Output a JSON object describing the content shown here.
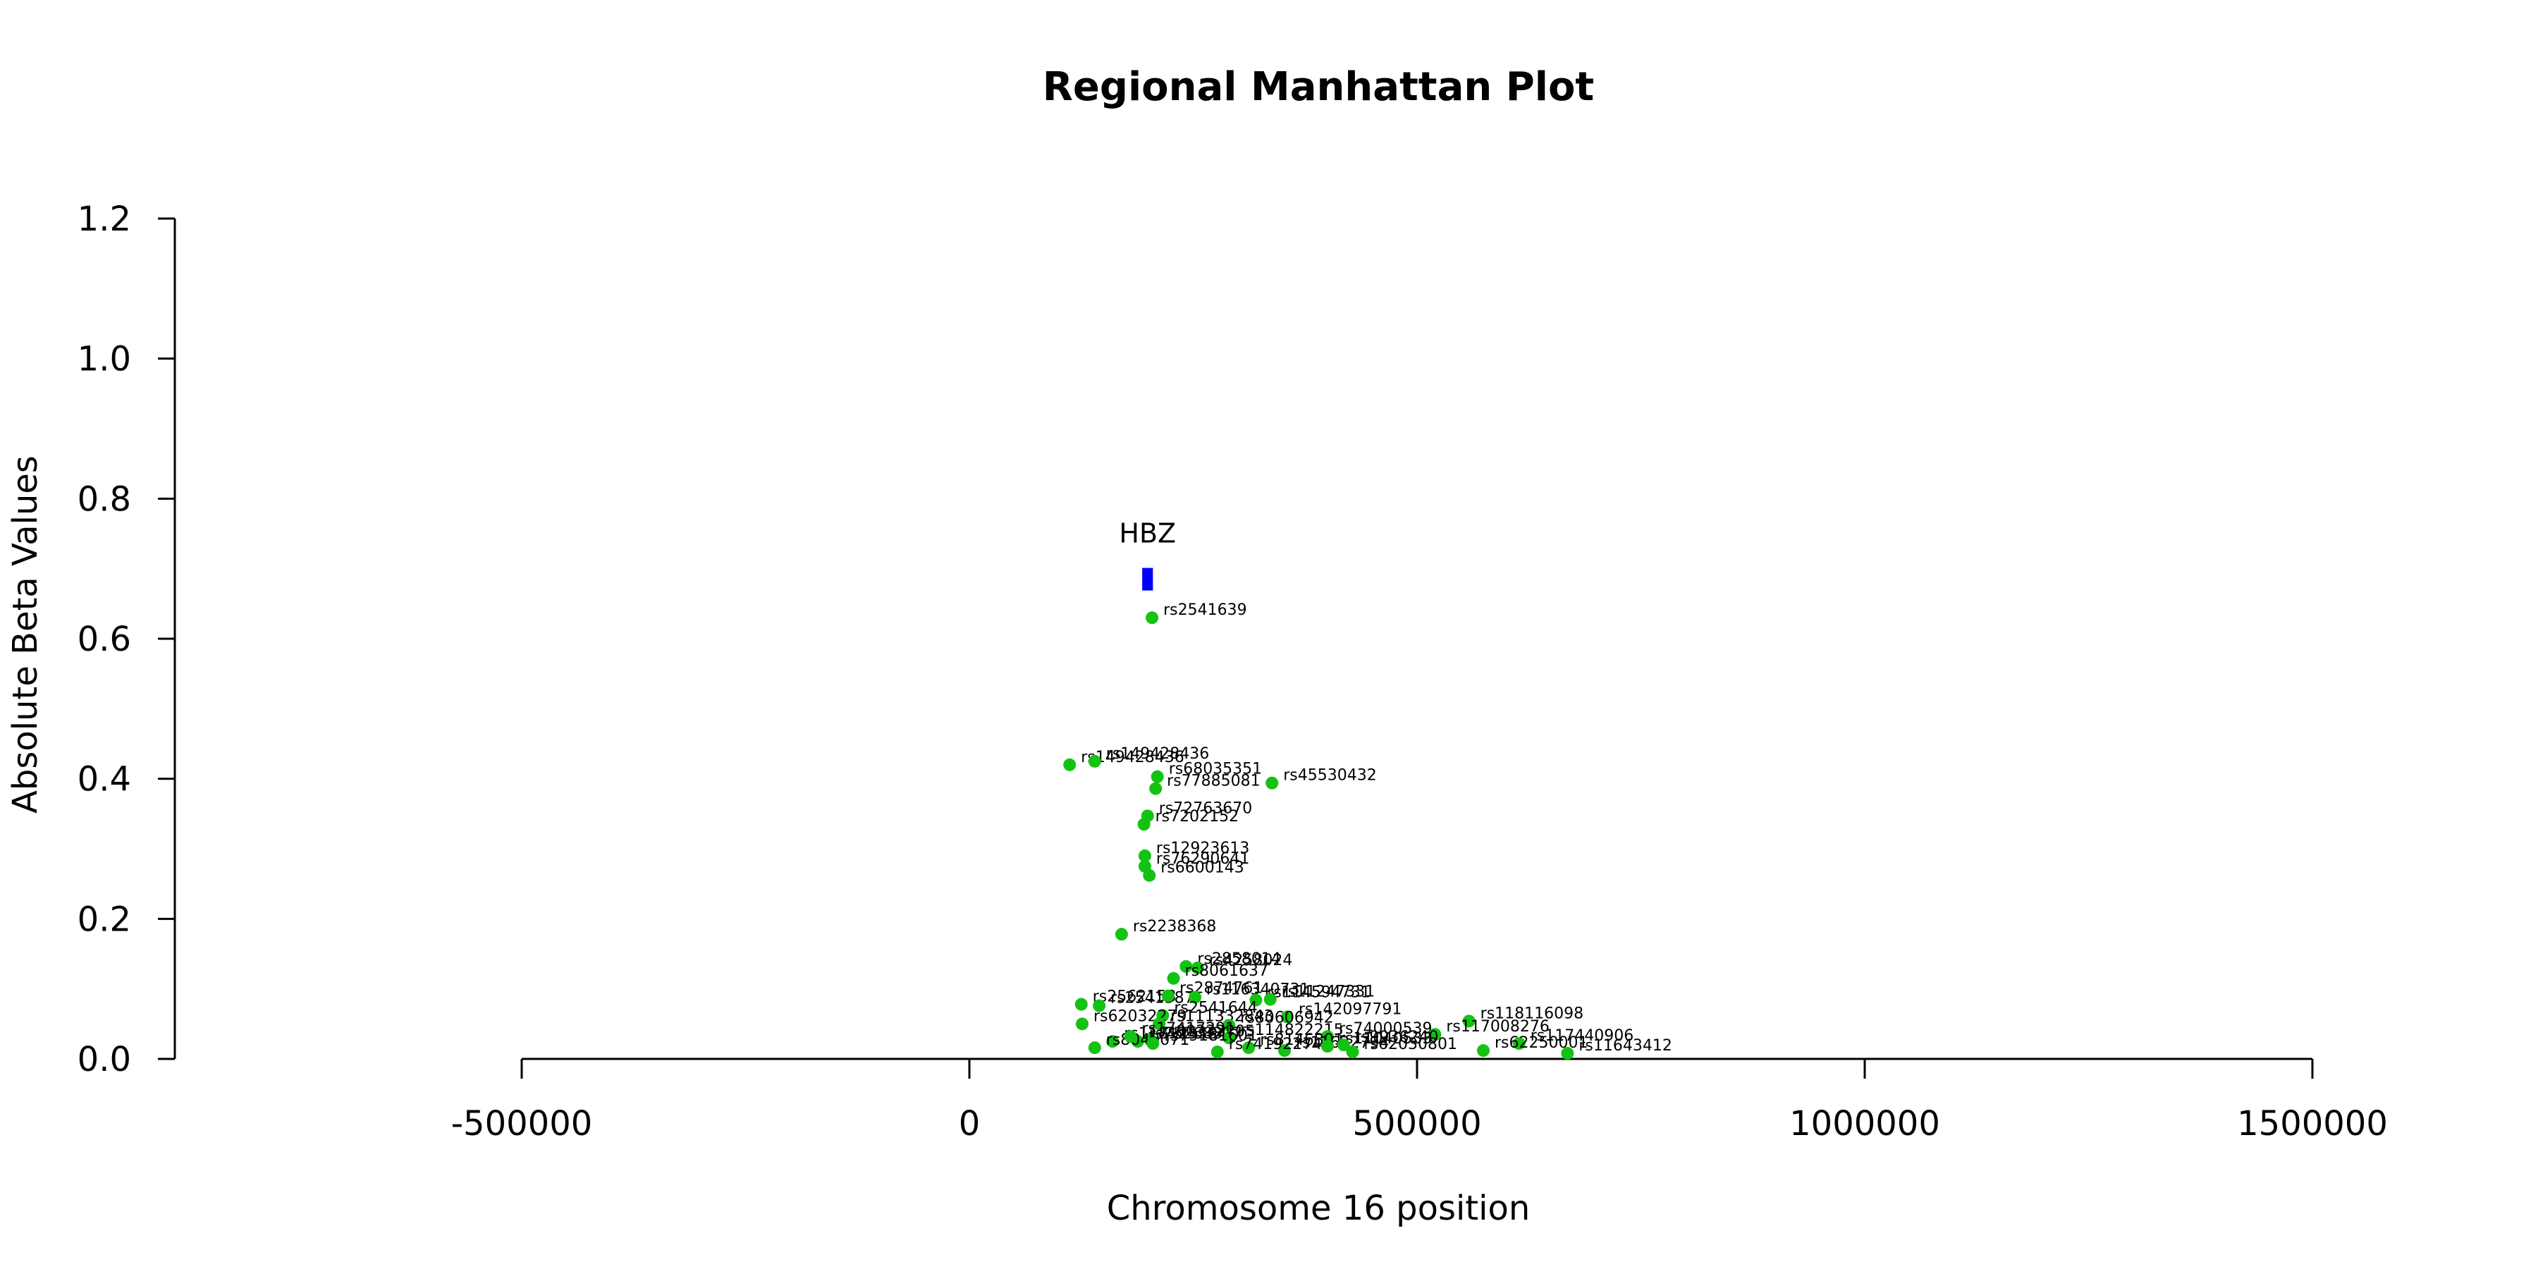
{
  "chart_data": {
    "type": "scatter",
    "title": "Regional Manhattan Plot",
    "xlabel": "Chromosome 16 position",
    "ylabel": "Absolute Beta Values",
    "xlim": [
      -500000,
      1500000
    ],
    "ylim": [
      0,
      1.2
    ],
    "x_ticks": [
      -500000,
      0,
      500000,
      1000000,
      1500000
    ],
    "x_tick_labels": [
      "-500000",
      "0",
      "500000",
      "1000000",
      "1500000"
    ],
    "y_ticks": [
      0.0,
      0.2,
      0.4,
      0.6,
      0.8,
      1.0,
      1.2
    ],
    "y_tick_labels": [
      "0.0",
      "0.2",
      "0.4",
      "0.6",
      "0.8",
      "1.0",
      "1.2"
    ],
    "grid": false,
    "colors": {
      "snp": "#13c313",
      "gene": "#0000ff",
      "axis": "#000000"
    },
    "gene": {
      "label": "HBZ",
      "x_start": 193000,
      "x_end": 205000,
      "y": 0.685
    },
    "points": [
      {
        "id": "rs2541639",
        "x": 204000,
        "y": 0.63
      },
      {
        "id": "rs149428436",
        "x": 112000,
        "y": 0.42
      },
      {
        "id": "rs149428436",
        "x": 140000,
        "y": 0.425
      },
      {
        "id": "rs68035351",
        "x": 210000,
        "y": 0.403
      },
      {
        "id": "rs77885081",
        "x": 208000,
        "y": 0.386
      },
      {
        "id": "rs45530432",
        "x": 338000,
        "y": 0.394
      },
      {
        "id": "rs72763670",
        "x": 199000,
        "y": 0.347
      },
      {
        "id": "rs7202152",
        "x": 195000,
        "y": 0.335
      },
      {
        "id": "rs12923613",
        "x": 196000,
        "y": 0.29
      },
      {
        "id": "rs76290641",
        "x": 196000,
        "y": 0.275
      },
      {
        "id": "rs6600143",
        "x": 201000,
        "y": 0.262
      },
      {
        "id": "rs2238368",
        "x": 170000,
        "y": 0.178
      },
      {
        "id": "rs2858014",
        "x": 242000,
        "y": 0.132
      },
      {
        "id": "rs4258024",
        "x": 255000,
        "y": 0.13
      },
      {
        "id": "rs8061637",
        "x": 228000,
        "y": 0.115
      },
      {
        "id": "rs2562158",
        "x": 125000,
        "y": 0.078
      },
      {
        "id": "rs2541587",
        "x": 145000,
        "y": 0.076
      },
      {
        "id": "rs2874761",
        "x": 222000,
        "y": 0.09
      },
      {
        "id": "rs116340731",
        "x": 252000,
        "y": 0.088
      },
      {
        "id": "rs114594731",
        "x": 320000,
        "y": 0.084
      },
      {
        "id": "rs11247331",
        "x": 336000,
        "y": 0.085
      },
      {
        "id": "rs2541644",
        "x": 216000,
        "y": 0.062
      },
      {
        "id": "rs142097791",
        "x": 355000,
        "y": 0.06
      },
      {
        "id": "rs62032279",
        "x": 126000,
        "y": 0.05
      },
      {
        "id": "rs111332843",
        "x": 212000,
        "y": 0.05
      },
      {
        "id": "rs80606942",
        "x": 290000,
        "y": 0.048
      },
      {
        "id": "rs118116098",
        "x": 558000,
        "y": 0.054
      },
      {
        "id": "rs80332205",
        "x": 202000,
        "y": 0.028
      },
      {
        "id": "rs118125384",
        "x": 160000,
        "y": 0.025
      },
      {
        "id": "rs75268317",
        "x": 188000,
        "y": 0.025
      },
      {
        "id": "rs114822215",
        "x": 290000,
        "y": 0.03
      },
      {
        "id": "rs74000539",
        "x": 400000,
        "y": 0.032
      },
      {
        "id": "rs117008276",
        "x": 520000,
        "y": 0.035
      },
      {
        "id": "rs117440906",
        "x": 614000,
        "y": 0.022
      },
      {
        "id": "rs8040071",
        "x": 140000,
        "y": 0.016
      },
      {
        "id": "rs79181601",
        "x": 205000,
        "y": 0.022
      },
      {
        "id": "rs8146801",
        "x": 312000,
        "y": 0.016
      },
      {
        "id": "rs11622794",
        "x": 352000,
        "y": 0.012
      },
      {
        "id": "rs11040533",
        "x": 400000,
        "y": 0.018
      },
      {
        "id": "rs9936240",
        "x": 418000,
        "y": 0.02
      },
      {
        "id": "rs62030801",
        "x": 428000,
        "y": 0.01
      },
      {
        "id": "rs62250001",
        "x": 574000,
        "y": 0.012
      },
      {
        "id": "rs11643412",
        "x": 668000,
        "y": 0.008
      },
      {
        "id": "rs74192274",
        "x": 277000,
        "y": 0.01
      },
      {
        "id": "rs17417291",
        "x": 180000,
        "y": 0.032
      }
    ]
  }
}
